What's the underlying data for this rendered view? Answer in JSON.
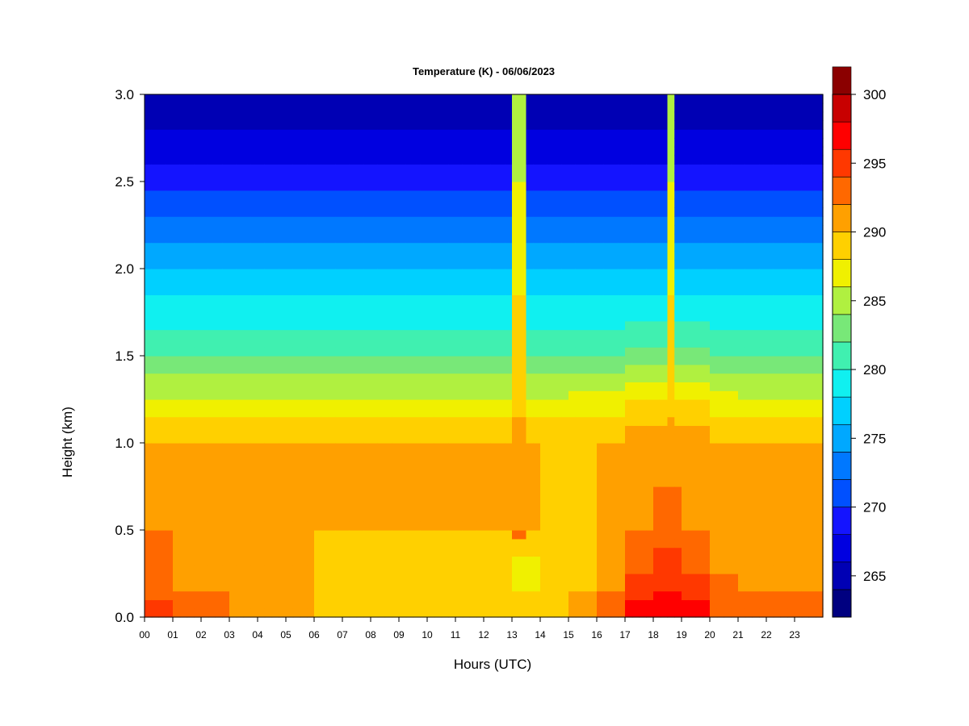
{
  "chart_data": {
    "type": "heatmap",
    "title": "Temperature (K) - 06/06/2023",
    "xlabel": "Hours (UTC)",
    "ylabel": "Height (km)",
    "x_ticks": [
      "00",
      "01",
      "02",
      "03",
      "04",
      "05",
      "06",
      "07",
      "08",
      "09",
      "10",
      "11",
      "12",
      "13",
      "14",
      "15",
      "16",
      "17",
      "18",
      "19",
      "20",
      "21",
      "22",
      "23"
    ],
    "y_ticks": [
      "0.0",
      "0.5",
      "1.0",
      "1.5",
      "2.0",
      "2.5",
      "3.0"
    ],
    "xlim": [
      0,
      24
    ],
    "ylim": [
      0,
      3.0
    ],
    "colorbar": {
      "ticks": [
        "265",
        "270",
        "275",
        "280",
        "285",
        "290",
        "295",
        "300"
      ],
      "range": [
        262,
        300
      ],
      "step": 2,
      "colors": [
        "#000080",
        "#0000B4",
        "#0000E0",
        "#1414FF",
        "#0050FF",
        "#0078FF",
        "#00A8FF",
        "#00D0FF",
        "#10F0F0",
        "#40F0B0",
        "#78E878",
        "#B0F040",
        "#F0F000",
        "#FFD000",
        "#FFA000",
        "#FF6800",
        "#FF3800",
        "#FF0000",
        "#C80000",
        "#8B0000"
      ]
    },
    "description_rows": [
      {
        "height_km": 0.0,
        "temp_by_hour": [
          295,
          294,
          293,
          292,
          291,
          291,
          290,
          289,
          289,
          289,
          289,
          289,
          289,
          289,
          290,
          292,
          294,
          297,
          298,
          297,
          294,
          293,
          293,
          294
        ]
      },
      {
        "height_km": 0.25,
        "temp_by_hour": [
          292,
          291,
          291,
          290,
          290,
          290,
          288,
          288,
          288,
          288,
          288,
          288,
          288,
          287,
          288,
          289,
          291,
          294,
          295,
          294,
          292,
          291,
          291,
          291
        ]
      },
      {
        "height_km": 0.5,
        "temp_by_hour": [
          292,
          291,
          291,
          291,
          290,
          290,
          290,
          290,
          290,
          290,
          290,
          290,
          290,
          290,
          288,
          289,
          290,
          292,
          293,
          292,
          291,
          291,
          291,
          292
        ]
      },
      {
        "height_km": 1.0,
        "temp_by_hour": [
          290,
          290,
          290,
          290,
          290,
          290,
          290,
          290,
          290,
          290,
          290,
          290,
          290,
          290,
          290,
          290,
          290,
          291,
          291,
          291,
          290,
          290,
          290,
          290
        ]
      },
      {
        "height_km": 1.25,
        "temp_by_hour": [
          286,
          286,
          286,
          286,
          286,
          286,
          286,
          286,
          286,
          286,
          286,
          286,
          286,
          286,
          286,
          287,
          287,
          288,
          288,
          288,
          287,
          286,
          286,
          286
        ]
      },
      {
        "height_km": 1.5,
        "temp_by_hour": [
          282,
          282,
          282,
          282,
          282,
          282,
          282,
          282,
          282,
          282,
          282,
          282,
          282,
          282,
          282,
          282,
          282,
          283,
          283,
          283,
          282,
          282,
          282,
          282
        ]
      },
      {
        "height_km": 2.0,
        "temp_by_hour": [
          276,
          276,
          276,
          276,
          276,
          276,
          276,
          276,
          276,
          276,
          276,
          276,
          276,
          276,
          276,
          276,
          276,
          276,
          276,
          276,
          276,
          276,
          276,
          276
        ]
      },
      {
        "height_km": 2.5,
        "temp_by_hour": [
          269,
          269,
          269,
          269,
          269,
          269,
          269,
          269,
          269,
          269,
          269,
          269,
          269,
          269,
          269,
          269,
          269,
          269,
          269,
          269,
          269,
          269,
          269,
          269
        ]
      },
      {
        "height_km": 3.0,
        "temp_by_hour": [
          264,
          264,
          264,
          264,
          264,
          264,
          264,
          264,
          264,
          264,
          264,
          264,
          264,
          264,
          264,
          264,
          264,
          264,
          264,
          264,
          264,
          264,
          264,
          264
        ]
      }
    ],
    "anomalies": [
      {
        "hour_start": 13.1,
        "hour_end": 13.5,
        "note": "warm column"
      },
      {
        "hour_start": 18.5,
        "hour_end": 18.75,
        "note": "warm column"
      }
    ]
  }
}
